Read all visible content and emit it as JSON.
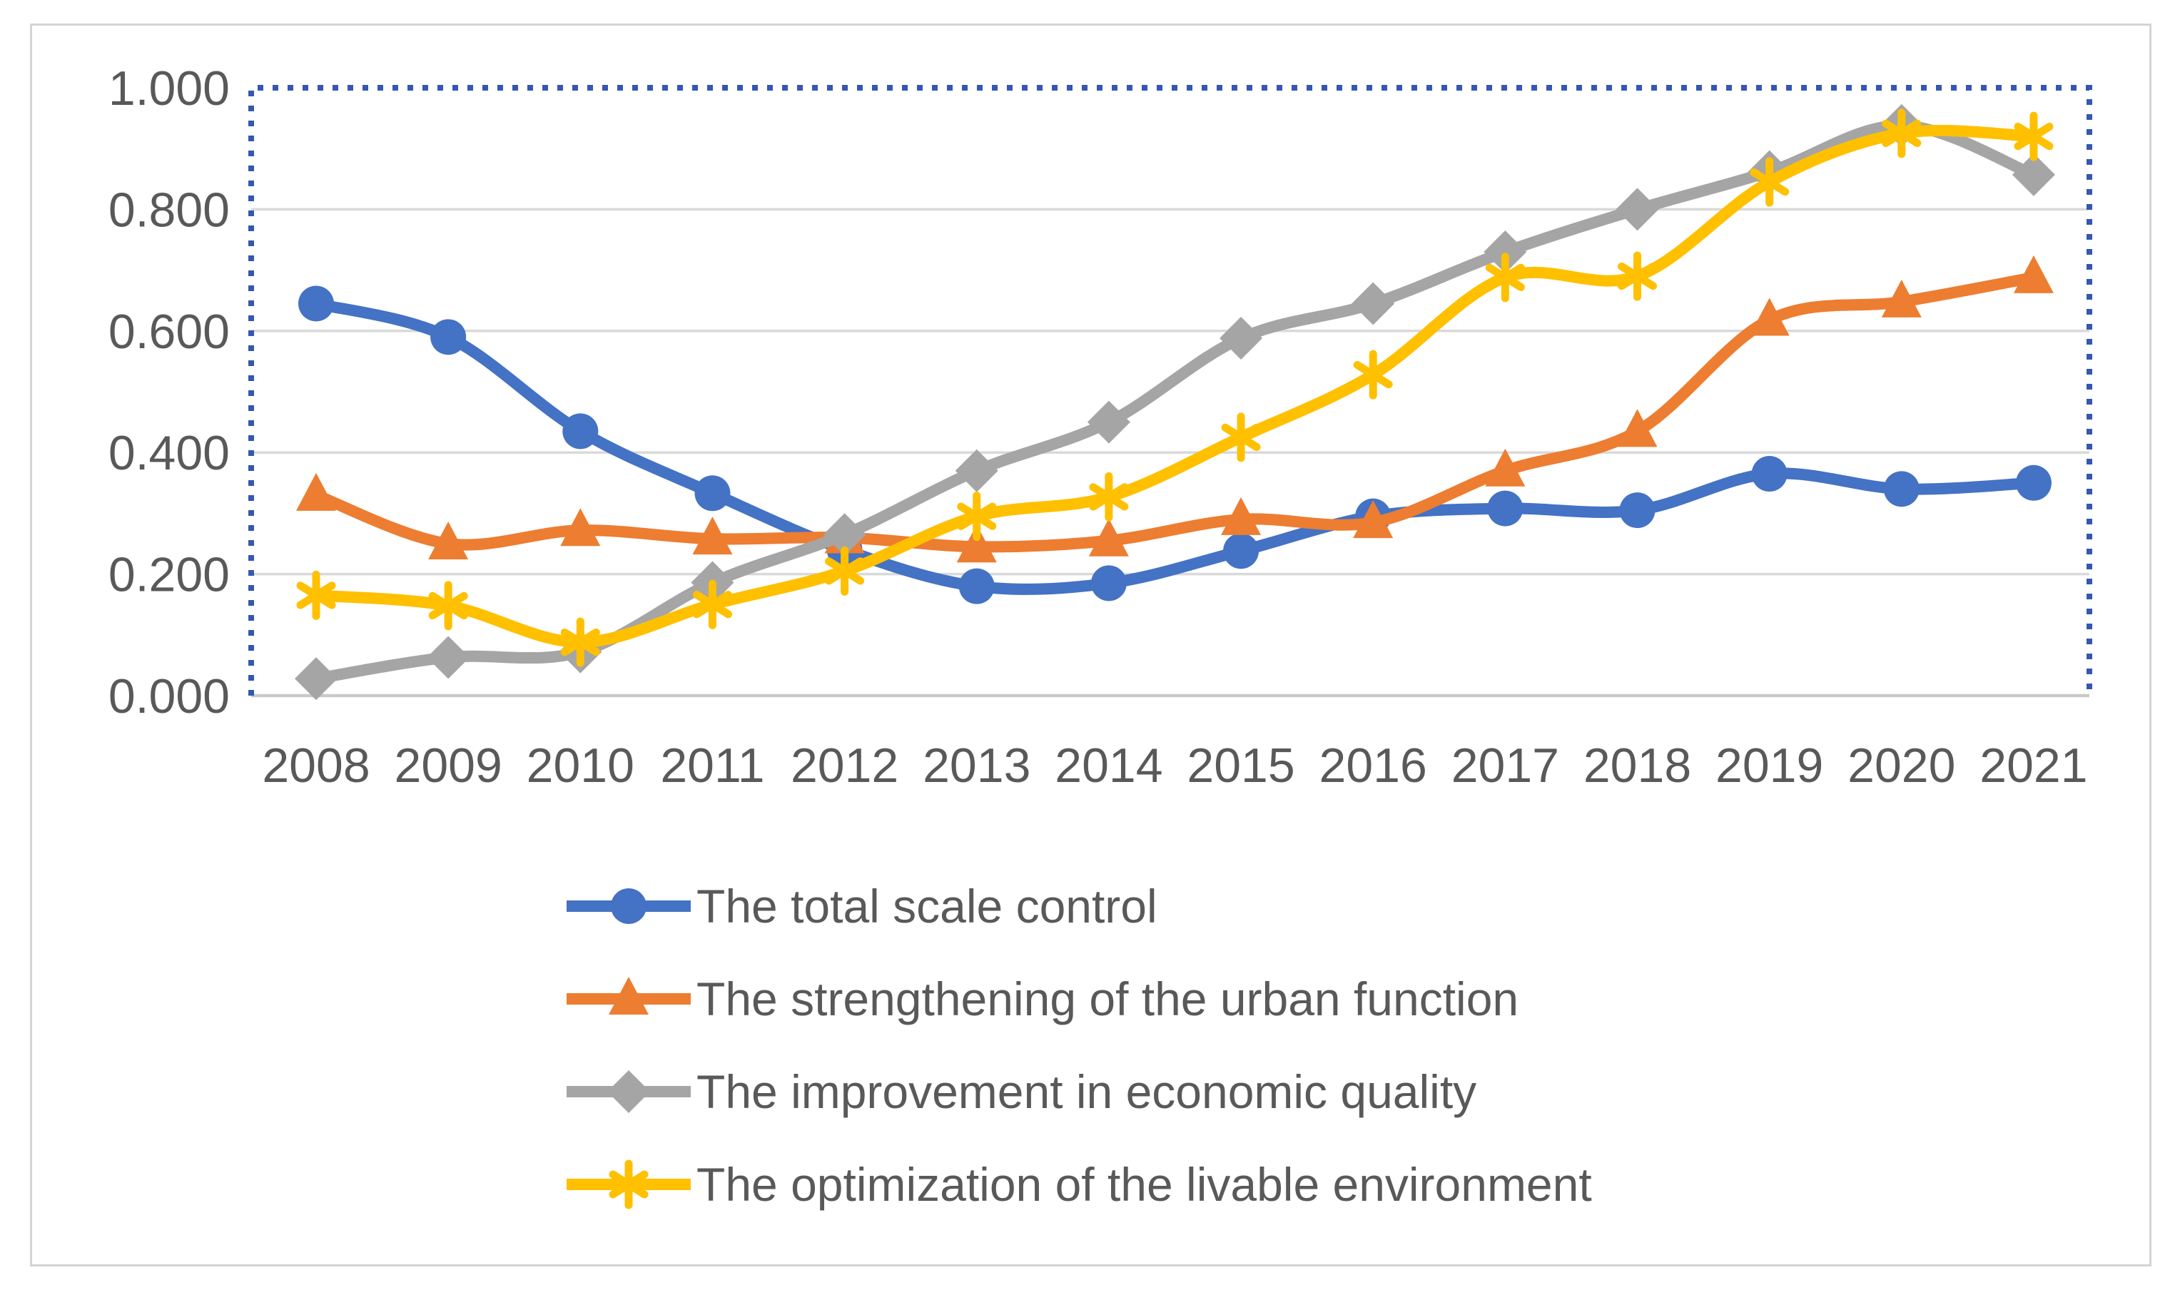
{
  "figure": {
    "background": "#ffffff",
    "border_color": "#d4d4d4",
    "plot_selection_border_color": "#3457b2",
    "gridline_color": "#d9d9d9",
    "axis_line_color": "#c9c9c9",
    "tick_label_color": "#595959",
    "legend_text_color": "#595959"
  },
  "chart_data": {
    "type": "line",
    "title": "",
    "smooth": true,
    "grid": true,
    "legend_position": "bottom-left-stacked",
    "xlabel": "",
    "ylabel": "",
    "ylim": [
      0.0,
      1.0
    ],
    "ytick_labels": [
      "1.000",
      "0.800",
      "0.600",
      "0.400",
      "0.200",
      "0.000"
    ],
    "ytick_values": [
      1.0,
      0.8,
      0.6,
      0.4,
      0.2,
      0.0
    ],
    "categories": [
      "2008",
      "2009",
      "2010",
      "2011",
      "2012",
      "2013",
      "2014",
      "2015",
      "2016",
      "2017",
      "2018",
      "2019",
      "2020",
      "2021"
    ],
    "series": [
      {
        "name": "The total scale control",
        "color": "#4472C4",
        "marker": "circle",
        "values": [
          0.645,
          0.59,
          0.435,
          0.333,
          0.24,
          0.18,
          0.185,
          0.238,
          0.295,
          0.308,
          0.305,
          0.365,
          0.34,
          0.35
        ]
      },
      {
        "name": "The strengthening of the urban function",
        "color": "#ED7D31",
        "marker": "triangle",
        "values": [
          0.33,
          0.25,
          0.272,
          0.258,
          0.26,
          0.245,
          0.255,
          0.29,
          0.285,
          0.37,
          0.435,
          0.618,
          0.648,
          0.688
        ]
      },
      {
        "name": "The improvement in economic quality",
        "color": "#A5A5A5",
        "marker": "diamond",
        "values": [
          0.028,
          0.063,
          0.072,
          0.186,
          0.265,
          0.37,
          0.45,
          0.588,
          0.645,
          0.73,
          0.8,
          0.862,
          0.938,
          0.857
        ]
      },
      {
        "name": "The optimization of the livable environment",
        "color": "#FFC000",
        "marker": "asterisk",
        "values": [
          0.165,
          0.148,
          0.088,
          0.15,
          0.205,
          0.295,
          0.327,
          0.425,
          0.528,
          0.688,
          0.69,
          0.845,
          0.925,
          0.92
        ]
      }
    ]
  }
}
